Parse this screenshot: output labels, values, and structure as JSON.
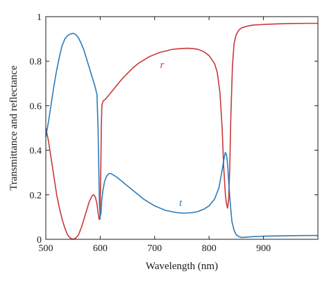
{
  "chart_data": {
    "type": "line",
    "title": "",
    "xlabel": "Wavelength (nm)",
    "ylabel": "Transmittance and reflectance",
    "xlim": [
      500,
      1000
    ],
    "ylim": [
      0,
      1
    ],
    "xticks": [
      500,
      600,
      700,
      800,
      900
    ],
    "yticks": [
      0,
      0.2,
      0.4,
      0.6,
      0.8,
      1
    ],
    "xtick_labels": [
      "500",
      "600",
      "700",
      "800",
      "900"
    ],
    "ytick_labels": [
      "0",
      "0.2",
      "0.4",
      "0.6",
      "0.8",
      "1"
    ],
    "grid": false,
    "legend": "none",
    "series": [
      {
        "name": "r",
        "color": "#c8383a",
        "label_at": [
          710,
          0.77
        ],
        "points": [
          [
            500,
            0.5
          ],
          [
            505,
            0.44
          ],
          [
            510,
            0.36
          ],
          [
            515,
            0.28
          ],
          [
            520,
            0.2
          ],
          [
            525,
            0.14
          ],
          [
            530,
            0.09
          ],
          [
            535,
            0.05
          ],
          [
            540,
            0.02
          ],
          [
            545,
            0.005
          ],
          [
            550,
            0.0
          ],
          [
            555,
            0.005
          ],
          [
            560,
            0.02
          ],
          [
            565,
            0.05
          ],
          [
            570,
            0.09
          ],
          [
            575,
            0.13
          ],
          [
            580,
            0.17
          ],
          [
            585,
            0.195
          ],
          [
            588,
            0.2
          ],
          [
            591,
            0.19
          ],
          [
            594,
            0.16
          ],
          [
            596,
            0.12
          ],
          [
            598,
            0.09
          ],
          [
            599.5,
            0.09
          ],
          [
            601,
            0.3
          ],
          [
            602,
            0.5
          ],
          [
            603,
            0.6
          ],
          [
            605,
            0.62
          ],
          [
            610,
            0.63
          ],
          [
            620,
            0.66
          ],
          [
            630,
            0.69
          ],
          [
            640,
            0.72
          ],
          [
            650,
            0.745
          ],
          [
            660,
            0.77
          ],
          [
            670,
            0.79
          ],
          [
            680,
            0.805
          ],
          [
            690,
            0.82
          ],
          [
            700,
            0.83
          ],
          [
            710,
            0.84
          ],
          [
            720,
            0.845
          ],
          [
            730,
            0.852
          ],
          [
            740,
            0.855
          ],
          [
            750,
            0.857
          ],
          [
            760,
            0.858
          ],
          [
            770,
            0.857
          ],
          [
            780,
            0.853
          ],
          [
            790,
            0.843
          ],
          [
            800,
            0.825
          ],
          [
            810,
            0.79
          ],
          [
            815,
            0.75
          ],
          [
            820,
            0.66
          ],
          [
            824,
            0.5
          ],
          [
            827,
            0.32
          ],
          [
            830,
            0.2
          ],
          [
            832,
            0.16
          ],
          [
            834,
            0.14
          ],
          [
            836,
            0.18
          ],
          [
            838,
            0.32
          ],
          [
            840,
            0.55
          ],
          [
            843,
            0.78
          ],
          [
            846,
            0.88
          ],
          [
            850,
            0.92
          ],
          [
            855,
            0.94
          ],
          [
            860,
            0.95
          ],
          [
            870,
            0.957
          ],
          [
            880,
            0.962
          ],
          [
            900,
            0.965
          ],
          [
            920,
            0.967
          ],
          [
            950,
            0.969
          ],
          [
            980,
            0.97
          ],
          [
            1000,
            0.97
          ]
        ]
      },
      {
        "name": "t",
        "color": "#2b7bb9",
        "label_at": [
          745,
          0.15
        ],
        "points": [
          [
            500,
            0.46
          ],
          [
            505,
            0.53
          ],
          [
            510,
            0.61
          ],
          [
            515,
            0.69
          ],
          [
            520,
            0.76
          ],
          [
            525,
            0.82
          ],
          [
            530,
            0.87
          ],
          [
            535,
            0.9
          ],
          [
            540,
            0.915
          ],
          [
            545,
            0.922
          ],
          [
            550,
            0.925
          ],
          [
            555,
            0.92
          ],
          [
            560,
            0.905
          ],
          [
            565,
            0.88
          ],
          [
            570,
            0.85
          ],
          [
            575,
            0.81
          ],
          [
            580,
            0.77
          ],
          [
            585,
            0.73
          ],
          [
            590,
            0.69
          ],
          [
            594,
            0.65
          ],
          [
            596,
            0.5
          ],
          [
            597.5,
            0.3
          ],
          [
            598.5,
            0.16
          ],
          [
            600,
            0.1
          ],
          [
            601.5,
            0.12
          ],
          [
            603,
            0.18
          ],
          [
            605,
            0.22
          ],
          [
            608,
            0.26
          ],
          [
            612,
            0.285
          ],
          [
            616,
            0.295
          ],
          [
            620,
            0.295
          ],
          [
            630,
            0.28
          ],
          [
            640,
            0.26
          ],
          [
            650,
            0.24
          ],
          [
            660,
            0.22
          ],
          [
            670,
            0.2
          ],
          [
            680,
            0.18
          ],
          [
            690,
            0.165
          ],
          [
            700,
            0.15
          ],
          [
            710,
            0.14
          ],
          [
            720,
            0.13
          ],
          [
            730,
            0.125
          ],
          [
            740,
            0.12
          ],
          [
            750,
            0.118
          ],
          [
            760,
            0.118
          ],
          [
            770,
            0.12
          ],
          [
            780,
            0.125
          ],
          [
            790,
            0.135
          ],
          [
            800,
            0.15
          ],
          [
            810,
            0.18
          ],
          [
            818,
            0.23
          ],
          [
            824,
            0.31
          ],
          [
            828,
            0.37
          ],
          [
            830,
            0.39
          ],
          [
            832,
            0.38
          ],
          [
            834,
            0.34
          ],
          [
            836,
            0.26
          ],
          [
            839,
            0.16
          ],
          [
            842,
            0.08
          ],
          [
            846,
            0.04
          ],
          [
            850,
            0.02
          ],
          [
            855,
            0.012
          ],
          [
            860,
            0.008
          ],
          [
            870,
            0.01
          ],
          [
            880,
            0.012
          ],
          [
            900,
            0.014
          ],
          [
            920,
            0.015
          ],
          [
            950,
            0.016
          ],
          [
            980,
            0.017
          ],
          [
            1000,
            0.017
          ]
        ]
      }
    ]
  }
}
